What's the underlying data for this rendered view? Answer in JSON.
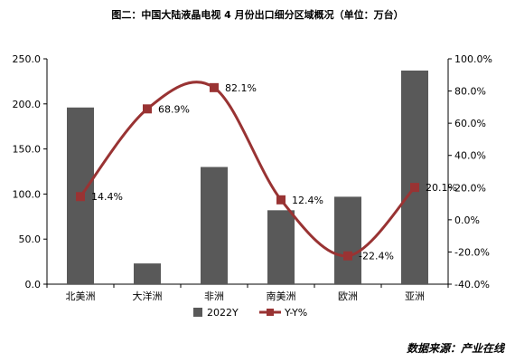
{
  "chart_data": {
    "type": "bar",
    "title": "图二：中国大陆液晶电视 4 月份出口细分区域概况（单位：万台）",
    "categories": [
      "北美洲",
      "大洋洲",
      "非洲",
      "南美洲",
      "欧洲",
      "亚洲"
    ],
    "series": [
      {
        "name": "2022Y",
        "type": "bar",
        "axis": "left",
        "values": [
          196,
          23,
          130,
          82,
          97,
          237
        ],
        "color": "#595959"
      },
      {
        "name": "Y-Y%",
        "type": "line",
        "axis": "right",
        "values": [
          14.4,
          68.9,
          82.1,
          12.4,
          -22.4,
          20.1
        ],
        "color": "#993333"
      }
    ],
    "data_labels": [
      "14.4%",
      "68.9%",
      "82.1%",
      "12.4%",
      "-22.4%",
      "20.1%"
    ],
    "left_axis": {
      "ylim": [
        0,
        250
      ],
      "ticks": [
        "0.0",
        "50.0",
        "100.0",
        "150.0",
        "200.0",
        "250.0"
      ]
    },
    "right_axis": {
      "ylim": [
        -40,
        100
      ],
      "ticks": [
        "-40.0%",
        "-20.0%",
        "0.0%",
        "20.0%",
        "40.0%",
        "60.0%",
        "80.0%",
        "100.0%"
      ]
    },
    "grid": false,
    "legend_position": "bottom",
    "smooth_line": true
  },
  "source_note": "数据来源：产业在线"
}
